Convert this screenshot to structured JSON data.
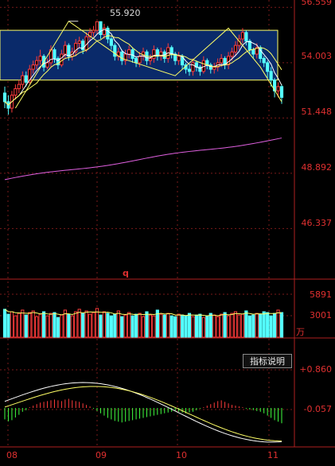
{
  "price_panel": {
    "highest_marker": "55.920",
    "y_axis_labels": [
      "56.559",
      "54.003",
      "51.448",
      "48.892",
      "46.337"
    ],
    "marker_q": "q"
  },
  "volume_panel": {
    "y_axis_labels": [
      "5891",
      "3001"
    ],
    "unit": "万"
  },
  "macd_panel": {
    "y_axis_labels": [
      "+0.860",
      "-0.057"
    ],
    "help_button": "指标说明"
  },
  "x_axis": {
    "labels": [
      "08",
      "09",
      "10",
      "11"
    ]
  },
  "colors": {
    "up": "#ff3b3b",
    "down": "#54ffff",
    "ma_short": "#ffffff",
    "ma_long": "#ffff66",
    "ma_trend": "#e060e0",
    "band_fill": "#0a2a6a",
    "grid": "#7a1a1a"
  },
  "chart_data": {
    "type": "candlestick",
    "candles": {
      "o": [
        52.6,
        52.2,
        51.9,
        52.5,
        52.8,
        53.0,
        53.4,
        53.1,
        53.7,
        53.9,
        54.1,
        54.3,
        53.8,
        54.0,
        54.6,
        54.2,
        53.9,
        54.4,
        54.8,
        54.3,
        54.5,
        54.9,
        55.0,
        54.6,
        55.2,
        55.4,
        55.5,
        55.9,
        55.3,
        55.6,
        55.1,
        54.8,
        54.3,
        54.5,
        54.1,
        54.4,
        54.6,
        54.2,
        54.0,
        54.3,
        54.5,
        54.1,
        54.2,
        54.6,
        54.3,
        54.5,
        54.2,
        54.7,
        54.4,
        54.1,
        54.3,
        53.9,
        53.7,
        53.6,
        54.0,
        53.8,
        53.6,
        54.1,
        53.9,
        53.7,
        53.8,
        54.0,
        54.2,
        53.9,
        54.3,
        54.5,
        54.8,
        55.1,
        55.4,
        55.0,
        54.6,
        54.4,
        54.7,
        54.2,
        54.0,
        53.6,
        53.2,
        52.7,
        52.9
      ],
      "c": [
        52.2,
        51.9,
        52.5,
        52.8,
        53.0,
        53.4,
        53.1,
        53.7,
        53.9,
        54.1,
        54.3,
        53.8,
        54.0,
        54.6,
        54.2,
        53.9,
        54.4,
        54.8,
        54.3,
        54.5,
        54.9,
        55.0,
        54.6,
        55.2,
        55.4,
        55.5,
        55.9,
        55.3,
        55.6,
        55.1,
        54.8,
        54.3,
        54.5,
        54.1,
        54.4,
        54.6,
        54.2,
        54.0,
        54.3,
        54.5,
        54.1,
        54.2,
        54.6,
        54.3,
        54.5,
        54.2,
        54.7,
        54.4,
        54.1,
        54.3,
        53.9,
        53.7,
        53.6,
        54.0,
        53.8,
        53.6,
        54.1,
        53.9,
        53.7,
        53.8,
        54.0,
        54.2,
        53.9,
        54.3,
        54.5,
        54.8,
        55.1,
        55.4,
        55.0,
        54.6,
        54.4,
        54.7,
        54.2,
        54.0,
        53.6,
        53.2,
        52.7,
        52.9,
        52.4
      ],
      "h": [
        52.9,
        52.5,
        52.7,
        53.0,
        53.2,
        53.6,
        53.6,
        53.9,
        54.1,
        54.3,
        54.6,
        54.4,
        54.2,
        54.8,
        54.7,
        54.3,
        54.6,
        55.0,
        54.9,
        54.7,
        55.1,
        55.2,
        55.1,
        55.4,
        55.6,
        55.7,
        55.92,
        55.9,
        55.8,
        55.7,
        55.2,
        54.9,
        54.7,
        54.6,
        54.6,
        54.8,
        54.7,
        54.3,
        54.5,
        54.7,
        54.6,
        54.4,
        54.8,
        54.7,
        54.7,
        54.6,
        54.9,
        54.8,
        54.5,
        54.5,
        54.4,
        54.0,
        53.9,
        54.2,
        54.1,
        53.9,
        54.3,
        54.2,
        54.0,
        54.0,
        54.2,
        54.4,
        54.3,
        54.5,
        54.7,
        55.0,
        55.3,
        55.6,
        55.5,
        55.1,
        54.7,
        54.9,
        54.8,
        54.3,
        54.1,
        53.8,
        53.3,
        53.1,
        53.0
      ],
      "l": [
        51.9,
        51.6,
        51.7,
        52.3,
        52.6,
        52.8,
        52.9,
        53.0,
        53.5,
        53.7,
        53.9,
        53.6,
        53.7,
        53.8,
        54.0,
        53.7,
        53.8,
        54.2,
        54.1,
        54.1,
        54.3,
        54.7,
        54.4,
        54.5,
        55.0,
        55.2,
        55.3,
        55.1,
        55.1,
        54.9,
        54.6,
        54.1,
        54.1,
        53.9,
        53.9,
        54.2,
        54.0,
        53.8,
        53.8,
        54.1,
        53.9,
        53.9,
        54.0,
        54.1,
        54.1,
        54.0,
        54.0,
        54.2,
        53.9,
        53.9,
        53.7,
        53.5,
        53.4,
        53.4,
        53.6,
        53.4,
        53.5,
        53.7,
        53.5,
        53.5,
        53.6,
        53.8,
        53.7,
        53.7,
        54.1,
        54.3,
        54.6,
        54.9,
        54.8,
        54.4,
        54.2,
        54.2,
        54.0,
        53.8,
        53.3,
        52.9,
        52.4,
        52.4,
        52.1
      ]
    },
    "volume": [
      3400,
      2800,
      3100,
      2600,
      2900,
      3300,
      2700,
      3000,
      3200,
      2500,
      2800,
      3100,
      2600,
      2900,
      3000,
      2400,
      2700,
      3300,
      2800,
      2600,
      3100,
      3400,
      2900,
      3200,
      2800,
      3000,
      3500,
      2700,
      3100,
      2900,
      2600,
      2800,
      3200,
      2500,
      2700,
      3000,
      2600,
      2800,
      2900,
      2500,
      3100,
      2700,
      2600,
      3300,
      2800,
      2700,
      2900,
      2600,
      2500,
      2800,
      2700,
      2600,
      2900,
      2500,
      2700,
      2800,
      2400,
      2600,
      2900,
      2700,
      2500,
      2800,
      3000,
      2600,
      2900,
      3100,
      2700,
      2800,
      3200,
      2600,
      2700,
      2900,
      2800,
      3100,
      3000,
      2600,
      2900,
      3300,
      3000
    ],
    "macd_hist": [
      -0.3,
      -0.35,
      -0.32,
      -0.25,
      -0.18,
      -0.1,
      -0.06,
      0.02,
      0.06,
      0.1,
      0.14,
      0.16,
      0.18,
      0.2,
      0.22,
      0.2,
      0.18,
      0.22,
      0.24,
      0.2,
      0.18,
      0.16,
      0.12,
      0.08,
      0.04,
      -0.02,
      -0.08,
      -0.14,
      -0.2,
      -0.26,
      -0.3,
      -0.34,
      -0.36,
      -0.38,
      -0.36,
      -0.34,
      -0.32,
      -0.3,
      -0.28,
      -0.26,
      -0.24,
      -0.22,
      -0.2,
      -0.18,
      -0.16,
      -0.14,
      -0.12,
      -0.1,
      -0.08,
      -0.1,
      -0.12,
      -0.14,
      -0.12,
      -0.1,
      -0.06,
      -0.02,
      0.02,
      0.06,
      0.1,
      0.14,
      0.18,
      0.2,
      0.16,
      0.12,
      0.08,
      0.06,
      0.04,
      0.02,
      -0.02,
      -0.04,
      -0.06,
      -0.08,
      -0.1,
      -0.14,
      -0.2,
      -0.26,
      -0.32,
      -0.36,
      -0.4
    ],
    "x_ticks": [
      "08",
      "09",
      "10",
      "11"
    ],
    "y_range": [
      46.337,
      56.559
    ],
    "band": [
      53.2,
      55.5
    ]
  }
}
